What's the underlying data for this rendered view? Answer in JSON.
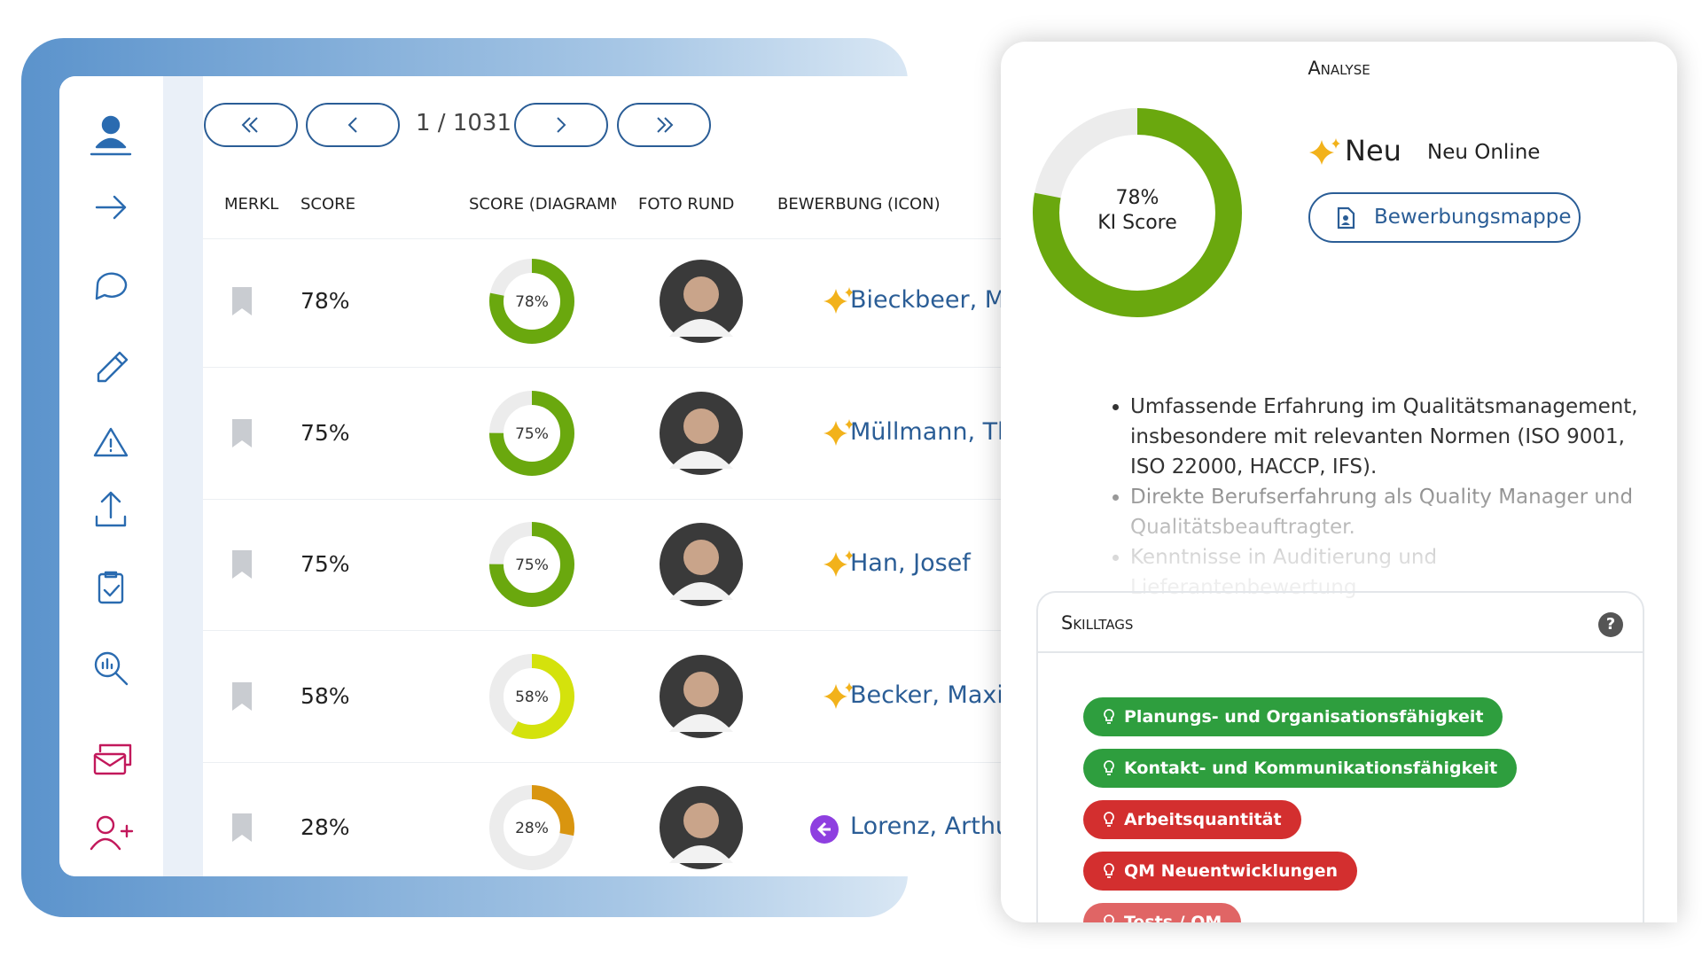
{
  "pagination": {
    "label": "1 / 1031"
  },
  "table": {
    "columns": [
      "MERKL",
      "SCORE",
      "SCORE (DIAGRAMM",
      "FOTO RUND",
      "BEWERBUNG (ICON)"
    ],
    "rows": [
      {
        "score": 78,
        "score_label": "78%",
        "color": "#6aa80e",
        "name": "Bieckbeer, Mc",
        "icon": "sparkle"
      },
      {
        "score": 75,
        "score_label": "75%",
        "color": "#6aa80e",
        "name": "Müllmann, Th",
        "icon": "sparkle"
      },
      {
        "score": 75,
        "score_label": "75%",
        "color": "#6aa80e",
        "name": "Han, Josef",
        "icon": "sparkle"
      },
      {
        "score": 58,
        "score_label": "58%",
        "color": "#d4e20c",
        "name": "Becker, Maxim",
        "icon": "sparkle"
      },
      {
        "score": 28,
        "score_label": "28%",
        "color": "#d9950f",
        "name": "Lorenz, Arthur",
        "icon": "arrow"
      }
    ]
  },
  "panel": {
    "title": "Analyse",
    "score": 78,
    "score_label": "78%",
    "score_caption": "KI Score",
    "score_color": "#6aa80e",
    "status": "Neu",
    "status_detail": "Neu Online",
    "button": "Bewerbungsmappe",
    "bullets": [
      "Umfassende Erfahrung im Qualitätsmanagement, insbesondere mit relevanten Normen (ISO 9001, ISO 22000, HACCP, IFS).",
      "Direkte Berufserfahrung als Quality Manager und Qualitätsbeauftragter.",
      "Kenntnisse in Auditierung und Lieferantenbewertung"
    ],
    "skilltags": {
      "title": "Skilltags",
      "help": "?",
      "tags": [
        {
          "label": "Planungs- und Organisationsfähigkeit",
          "color": "#2e9e3e"
        },
        {
          "label": "Kontakt- und Kommunikationsfähigkeit",
          "color": "#2e9e3e"
        },
        {
          "label": "Arbeitsquantität",
          "color": "#d32f2f"
        },
        {
          "label": "QM Neuentwicklungen",
          "color": "#d32f2f"
        },
        {
          "label": "Tests / QM",
          "color": "#e06565"
        }
      ]
    }
  }
}
